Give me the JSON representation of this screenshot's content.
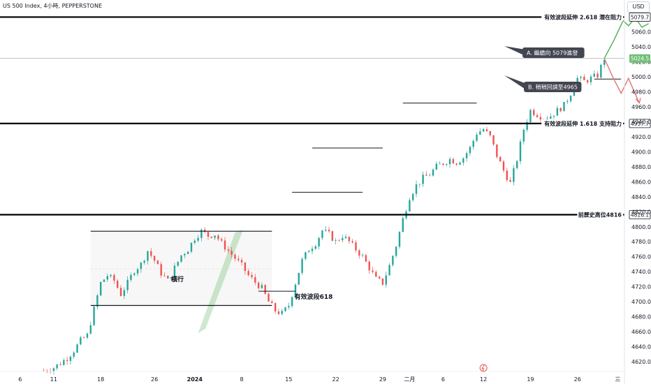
{
  "header": {
    "title": "US 500 Index, 4小時, PEPPERSTONE",
    "currency": "USD"
  },
  "chart_data": {
    "type": "candlestick",
    "y_ticks": [
      4620,
      4640,
      4660,
      4680,
      4700,
      4720,
      4740,
      4760,
      4780,
      4800,
      4820,
      4840,
      4860,
      4880,
      4900,
      4920,
      4940,
      4960,
      4980,
      5000,
      5020,
      5040,
      5060
    ],
    "ylim": [
      4607,
      5095
    ],
    "x_ticks": [
      "6",
      "11",
      "18",
      "26",
      "2024",
      "8",
      "15",
      "22",
      "29",
      "二月",
      "6",
      "12",
      "19",
      "26",
      "三"
    ],
    "x_tick_positions": [
      0,
      5,
      12,
      20,
      26,
      33,
      40,
      47,
      54,
      58,
      63,
      69,
      76,
      83,
      89
    ],
    "x_range": [
      -3,
      90
    ],
    "current_price": "5024.5",
    "key_levels": [
      {
        "value": 5079.7,
        "value_label": "5079.7",
        "label": "有效波段延伸 2.618 潛在阻力"
      },
      {
        "value": 4937.7,
        "value_label": "4937.7",
        "label": "有效波段延伸 1.618 支持阻力"
      },
      {
        "value": 4816.1,
        "value_label": "4816.1",
        "label": "前歷史高位4816"
      }
    ],
    "annotations": {
      "range_label": "橫行",
      "swing_label": "有效波段618",
      "scenario_a": "A. 繼續向 5079進發",
      "scenario_b": "B. 稍稍回調至4965"
    },
    "price_path": [
      [
        3.5,
        4608
      ],
      [
        5,
        4612
      ],
      [
        6,
        4618
      ],
      [
        7,
        4625
      ],
      [
        8,
        4635
      ],
      [
        9,
        4648
      ],
      [
        10,
        4655
      ],
      [
        11,
        4690
      ],
      [
        12,
        4725
      ],
      [
        13,
        4735
      ],
      [
        14,
        4728
      ],
      [
        15,
        4710
      ],
      [
        16,
        4725
      ],
      [
        17,
        4742
      ],
      [
        18,
        4750
      ],
      [
        19,
        4768
      ],
      [
        20,
        4755
      ],
      [
        21,
        4738
      ],
      [
        22,
        4728
      ],
      [
        23,
        4745
      ],
      [
        24,
        4762
      ],
      [
        25,
        4770
      ],
      [
        26,
        4785
      ],
      [
        27,
        4794
      ],
      [
        28,
        4788
      ],
      [
        29,
        4790
      ],
      [
        30,
        4778
      ],
      [
        31,
        4768
      ],
      [
        32,
        4758
      ],
      [
        33,
        4748
      ],
      [
        34,
        4735
      ],
      [
        35,
        4726
      ],
      [
        36,
        4718
      ],
      [
        37,
        4700
      ],
      [
        38,
        4688
      ],
      [
        39,
        4684
      ],
      [
        40,
        4695
      ],
      [
        41,
        4725
      ],
      [
        42,
        4755
      ],
      [
        43,
        4770
      ],
      [
        44,
        4778
      ],
      [
        45,
        4795
      ],
      [
        46,
        4790
      ],
      [
        47,
        4780
      ],
      [
        48,
        4788
      ],
      [
        49,
        4780
      ],
      [
        50,
        4770
      ],
      [
        51,
        4760
      ],
      [
        52,
        4745
      ],
      [
        53,
        4730
      ],
      [
        54,
        4725
      ],
      [
        55,
        4748
      ],
      [
        56,
        4775
      ],
      [
        57,
        4810
      ],
      [
        58,
        4840
      ],
      [
        59,
        4855
      ],
      [
        60,
        4865
      ],
      [
        61,
        4870
      ],
      [
        62,
        4880
      ],
      [
        63,
        4885
      ],
      [
        64,
        4890
      ],
      [
        65,
        4886
      ],
      [
        66,
        4892
      ],
      [
        67,
        4905
      ],
      [
        68,
        4925
      ],
      [
        69,
        4930
      ],
      [
        70,
        4920
      ],
      [
        71,
        4895
      ],
      [
        72,
        4875
      ],
      [
        73,
        4858
      ],
      [
        74,
        4890
      ],
      [
        75,
        4930
      ],
      [
        76,
        4955
      ],
      [
        77,
        4950
      ],
      [
        78,
        4945
      ],
      [
        79,
        4948
      ],
      [
        80,
        4955
      ],
      [
        81,
        4962
      ],
      [
        82,
        4978
      ],
      [
        83,
        4998
      ],
      [
        84,
        4994
      ],
      [
        85,
        4998
      ],
      [
        86,
        5002
      ],
      [
        87,
        5024.5
      ]
    ],
    "scenario_a_path": [
      [
        87,
        5024.5
      ],
      [
        88.5,
        5050
      ],
      [
        89.8,
        5075
      ],
      [
        90.6,
        5068
      ],
      [
        91.6,
        5079
      ],
      [
        92.6,
        5066
      ],
      [
        93.6,
        5071
      ]
    ],
    "scenario_b_path": [
      [
        87,
        5024.5
      ],
      [
        88.3,
        4999
      ],
      [
        89.5,
        4978
      ],
      [
        90.6,
        4998
      ],
      [
        92.2,
        4965
      ]
    ]
  }
}
